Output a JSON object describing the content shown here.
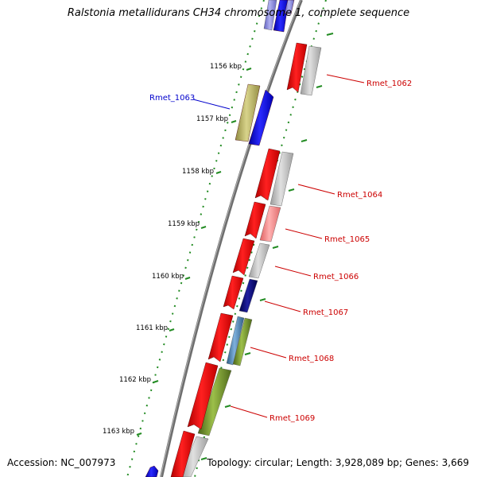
{
  "title": "Ralstonia metallidurans CH34 chromosome 1, complete sequence",
  "accession": "Accession: NC_007973",
  "summary": "Topology: circular; Length: 3,928,089 bp; Genes: 3,669",
  "scale_labels": [
    "1156 kbp",
    "1157 kbp",
    "1158 kbp",
    "1159 kbp",
    "1160 kbp",
    "1161 kbp",
    "1162 kbp",
    "1163 kbp"
  ],
  "gene_labels": [
    {
      "text": "Rmet_1062",
      "color": "#cc0000"
    },
    {
      "text": "Rmet_1063",
      "color": "#0000cc"
    },
    {
      "text": "Rmet_1064",
      "color": "#cc0000"
    },
    {
      "text": "Rmet_1065",
      "color": "#cc0000"
    },
    {
      "text": "Rmet_1066",
      "color": "#cc0000"
    },
    {
      "text": "Rmet_1067",
      "color": "#cc0000"
    },
    {
      "text": "Rmet_1068",
      "color": "#cc0000"
    },
    {
      "text": "Rmet_1069",
      "color": "#cc0000"
    }
  ],
  "colors": {
    "forward_strand": "#0000ff",
    "reverse_strand": "#ff0000",
    "backbone": "#777777",
    "tick": "#228b22",
    "cog_gray": "#b8b8b8",
    "cog_khaki": "#b5b064",
    "cog_pink": "#f08080",
    "cog_navy": "#00007a",
    "cog_steelblue": "#4682b4",
    "cog_olive": "#6b8e23"
  }
}
